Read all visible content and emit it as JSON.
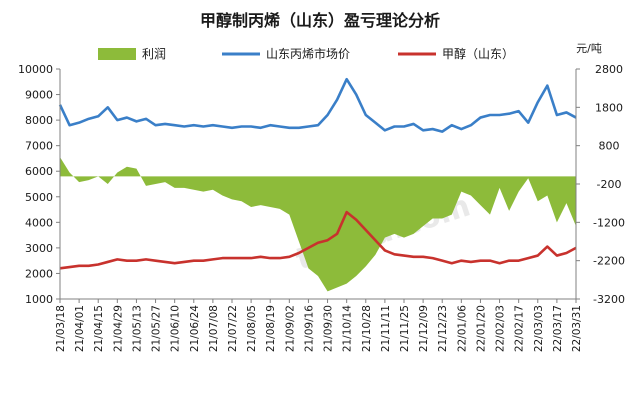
{
  "chart_data": {
    "type": "line",
    "title": "甲醇制丙烯（山东）盈亏理论分析",
    "unit_right": "元/吨",
    "watermark": "tuduu.com",
    "grid": false,
    "legend_position": "top",
    "colors": {
      "profit": "#8dbb3a",
      "propylene": "#3a7fc8",
      "methanol": "#c8322d"
    },
    "y_left": {
      "lim": [
        1000,
        10000
      ],
      "ticks": [
        1000,
        2000,
        3000,
        4000,
        5000,
        6000,
        7000,
        8000,
        9000,
        10000
      ]
    },
    "y_right": {
      "lim": [
        -3200,
        2800
      ],
      "ticks": [
        -3200,
        -2200,
        -1200,
        -200,
        800,
        1800,
        2800
      ]
    },
    "x_tick_labels": [
      "21/03/18",
      "21/04/01",
      "21/04/15",
      "21/04/29",
      "21/05/13",
      "21/05/27",
      "21/06/10",
      "21/06/24",
      "21/07/08",
      "21/07/22",
      "21/08/05",
      "21/08/19",
      "21/09/02",
      "21/09/16",
      "21/09/30",
      "21/10/14",
      "21/10/28",
      "21/11/11",
      "21/11/25",
      "21/12/09",
      "21/12/23",
      "22/01/06",
      "22/01/20",
      "22/02/03",
      "22/02/17",
      "22/03/03",
      "22/03/17",
      "22/03/31"
    ],
    "x": [
      "21/03/18",
      "21/03/25",
      "21/04/01",
      "21/04/08",
      "21/04/15",
      "21/04/22",
      "21/04/29",
      "21/05/06",
      "21/05/13",
      "21/05/20",
      "21/05/27",
      "21/06/03",
      "21/06/10",
      "21/06/17",
      "21/06/24",
      "21/07/01",
      "21/07/08",
      "21/07/15",
      "21/07/22",
      "21/07/29",
      "21/08/05",
      "21/08/12",
      "21/08/19",
      "21/08/26",
      "21/09/02",
      "21/09/09",
      "21/09/16",
      "21/09/23",
      "21/09/30",
      "21/10/07",
      "21/10/14",
      "21/10/21",
      "21/10/28",
      "21/11/04",
      "21/11/11",
      "21/11/18",
      "21/11/25",
      "21/12/02",
      "21/12/09",
      "21/12/16",
      "21/12/23",
      "21/12/30",
      "22/01/06",
      "22/01/13",
      "22/01/20",
      "22/01/27",
      "22/02/03",
      "22/02/10",
      "22/02/17",
      "22/02/24",
      "22/03/03",
      "22/03/10",
      "22/03/17",
      "22/03/24",
      "22/03/31"
    ],
    "series": [
      {
        "name": "利润",
        "axis": "right",
        "style": "area",
        "values": [
          500,
          100,
          -150,
          -100,
          0,
          -200,
          100,
          250,
          200,
          -250,
          -200,
          -150,
          -300,
          -300,
          -350,
          -400,
          -350,
          -500,
          -600,
          -650,
          -800,
          -750,
          -800,
          -850,
          -1000,
          -1700,
          -2400,
          -2600,
          -3000,
          -2900,
          -2800,
          -2600,
          -2350,
          -2050,
          -1600,
          -1500,
          -1600,
          -1500,
          -1300,
          -1100,
          -1100,
          -1000,
          -400,
          -500,
          -750,
          -1000,
          -300,
          -900,
          -400,
          -50,
          -650,
          -500,
          -1200,
          -700,
          -1300
        ]
      },
      {
        "name": "山东丙烯市场价",
        "axis": "left",
        "style": "line",
        "values": [
          8600,
          7800,
          7900,
          8050,
          8150,
          8500,
          8000,
          8100,
          7950,
          8050,
          7800,
          7850,
          7800,
          7750,
          7800,
          7750,
          7800,
          7750,
          7700,
          7750,
          7750,
          7700,
          7800,
          7750,
          7700,
          7700,
          7750,
          7800,
          8200,
          8800,
          9600,
          9000,
          8200,
          7900,
          7600,
          7750,
          7750,
          7850,
          7600,
          7650,
          7550,
          7800,
          7650,
          7800,
          8100,
          8200,
          8200,
          8250,
          8350,
          7900,
          8700,
          9350,
          8200,
          8300,
          8100
        ]
      },
      {
        "name": "甲醇（山东）",
        "axis": "left",
        "style": "line",
        "values": [
          2200,
          2250,
          2300,
          2300,
          2350,
          2450,
          2550,
          2500,
          2500,
          2550,
          2500,
          2450,
          2400,
          2450,
          2500,
          2500,
          2550,
          2600,
          2600,
          2600,
          2600,
          2650,
          2600,
          2600,
          2650,
          2800,
          3000,
          3200,
          3300,
          3550,
          4400,
          4100,
          3700,
          3300,
          2900,
          2750,
          2700,
          2650,
          2650,
          2600,
          2500,
          2400,
          2500,
          2450,
          2500,
          2500,
          2400,
          2500,
          2500,
          2600,
          2700,
          3050,
          2700,
          2800,
          3000
        ]
      }
    ]
  }
}
